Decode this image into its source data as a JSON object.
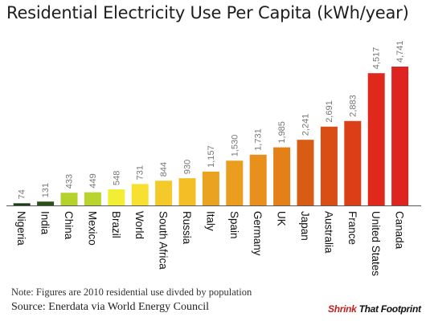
{
  "title": "Residential Electricity Use Per Capita (kWh/year)",
  "note": "Note: Figures are 2010 residential use divded by population",
  "source": "Source:  Enerdata via World Energy Council",
  "brand": "Shrink That Footprint",
  "chart_data": {
    "type": "bar",
    "title": "Residential Electricity Use Per Capita (kWh/year)",
    "categories": [
      "Nigeria",
      "India",
      "China",
      "Mexico",
      "Brazil",
      "World",
      "South Africa",
      "Russia",
      "Italy",
      "Spain",
      "Germany",
      "UK",
      "Japan",
      "Australia",
      "France",
      "United States",
      "Canada"
    ],
    "values": [
      74,
      131,
      433,
      449,
      548,
      731,
      844,
      930,
      1157,
      1530,
      1731,
      1985,
      2241,
      2691,
      2883,
      4517,
      4741
    ],
    "value_labels": [
      "74",
      "131",
      "433",
      "449",
      "548",
      "731",
      "844",
      "930",
      "1,157",
      "1,530",
      "1,731",
      "1,985",
      "2,241",
      "2,691",
      "2,883",
      "4,517",
      "4,741"
    ],
    "colors": [
      "#1f3d14",
      "#2a5218",
      "#b5d12c",
      "#b9d42e",
      "#f2ee34",
      "#f7e030",
      "#f6c92a",
      "#f4bf26",
      "#e9a321",
      "#ea9d1f",
      "#e88f1c",
      "#e48018",
      "#d95c15",
      "#d84e14",
      "#dc3f17",
      "#e0281d",
      "#de2420"
    ],
    "ylim": [
      0,
      5000
    ],
    "grid": false,
    "legend": "none"
  }
}
